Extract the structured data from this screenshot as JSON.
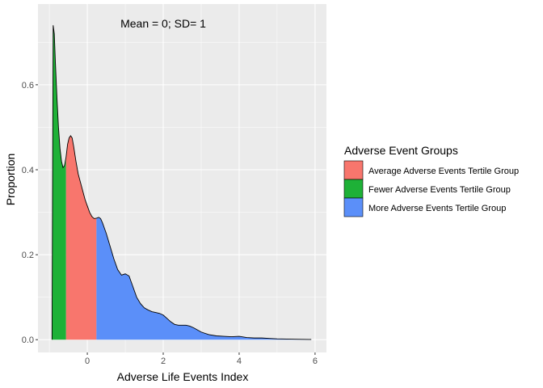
{
  "chart_data": {
    "type": "area",
    "annotation": "Mean = 0; SD= 1",
    "xlabel": "Adverse Life Events Index",
    "ylabel": "Proportion",
    "xlim": [
      -1.3,
      6.3
    ],
    "ylim": [
      -0.03,
      0.79
    ],
    "x_ticks": [
      0,
      2,
      4,
      6
    ],
    "x_tick_labels": [
      "0",
      "2",
      "4",
      "6"
    ],
    "y_ticks": [
      0.0,
      0.2,
      0.4,
      0.6
    ],
    "y_tick_labels": [
      "0.0",
      "0.2",
      "0.4",
      "0.6"
    ],
    "grid": true,
    "legend": {
      "title": "Adverse Event Groups",
      "position": "right",
      "items": [
        {
          "label": "Average Adverse Events Tertile Group",
          "color": "#F8766D"
        },
        {
          "label": "Fewer Adverse Events Tertile Group",
          "color": "#1EB137"
        },
        {
          "label": "More Adverse Events Tertile Group",
          "color": "#5B8FF9"
        }
      ]
    },
    "series": [
      {
        "name": "Fewer Adverse Events Tertile Group",
        "color": "#1EB137",
        "x": [
          -0.93,
          -0.9,
          -0.87,
          -0.84,
          -0.8,
          -0.76,
          -0.72,
          -0.68,
          -0.64,
          -0.6,
          -0.56
        ],
        "y": [
          0.0,
          0.74,
          0.72,
          0.65,
          0.57,
          0.5,
          0.45,
          0.42,
          0.405,
          0.41,
          0.43
        ]
      },
      {
        "name": "Average Adverse Events Tertile Group",
        "color": "#F8766D",
        "x": [
          -0.56,
          -0.52,
          -0.48,
          -0.44,
          -0.4,
          -0.36,
          -0.3,
          -0.24,
          -0.18,
          -0.12,
          -0.06,
          0.0,
          0.06,
          0.12,
          0.18,
          0.24
        ],
        "y": [
          0.43,
          0.46,
          0.475,
          0.48,
          0.475,
          0.455,
          0.42,
          0.39,
          0.37,
          0.35,
          0.33,
          0.315,
          0.3,
          0.29,
          0.285,
          0.286
        ]
      },
      {
        "name": "More Adverse Events Tertile Group",
        "color": "#5B8FF9",
        "x": [
          0.24,
          0.3,
          0.35,
          0.4,
          0.5,
          0.6,
          0.7,
          0.8,
          0.9,
          1.0,
          1.1,
          1.2,
          1.3,
          1.4,
          1.5,
          1.6,
          1.7,
          1.8,
          1.9,
          2.0,
          2.1,
          2.2,
          2.3,
          2.4,
          2.5,
          2.6,
          2.7,
          2.8,
          2.9,
          3.0,
          3.2,
          3.4,
          3.6,
          3.8,
          4.0,
          4.2,
          4.4,
          4.6,
          4.8,
          5.0,
          5.5,
          5.9
        ],
        "y": [
          0.286,
          0.288,
          0.285,
          0.275,
          0.25,
          0.22,
          0.19,
          0.165,
          0.152,
          0.155,
          0.15,
          0.125,
          0.1,
          0.085,
          0.075,
          0.07,
          0.066,
          0.064,
          0.062,
          0.058,
          0.05,
          0.042,
          0.036,
          0.034,
          0.034,
          0.034,
          0.032,
          0.028,
          0.023,
          0.018,
          0.012,
          0.009,
          0.008,
          0.007,
          0.008,
          0.005,
          0.004,
          0.004,
          0.003,
          0.002,
          0.001,
          0.0005
        ]
      }
    ]
  }
}
